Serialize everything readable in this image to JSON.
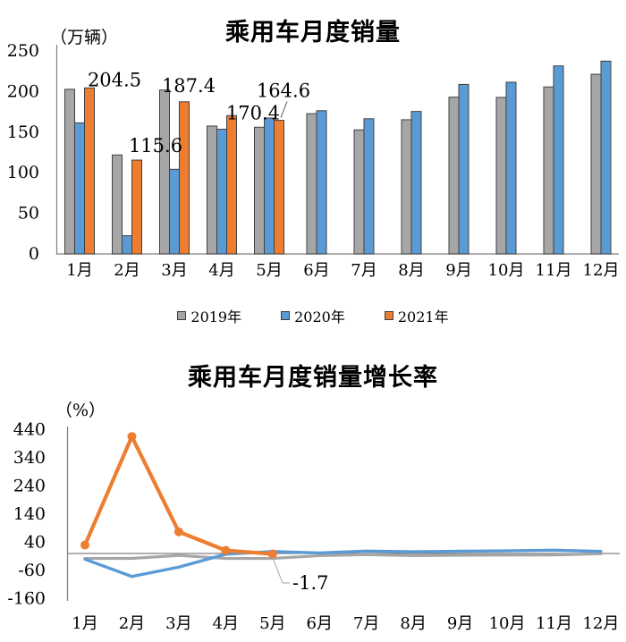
{
  "chart_data": [
    {
      "type": "bar",
      "title": "乘用车月度销量",
      "unit_label": "（万辆）",
      "categories": [
        "1月",
        "2月",
        "3月",
        "4月",
        "5月",
        "6月",
        "7月",
        "8月",
        "9月",
        "10月",
        "11月",
        "12月"
      ],
      "y_ticks": [
        0,
        50,
        100,
        150,
        200,
        250
      ],
      "ylim": [
        0,
        250
      ],
      "grid": false,
      "legend_position": "bottom",
      "series": [
        {
          "name": "2019年",
          "color": "#A6A6A6",
          "values": [
            202.8,
            121.9,
            201.9,
            157.5,
            156.1,
            172.8,
            152.8,
            165.3,
            193.1,
            192.8,
            205.7,
            221.3
          ]
        },
        {
          "name": "2020年",
          "color": "#5B9BD5",
          "values": [
            161.4,
            22.4,
            104.3,
            153.6,
            167.4,
            176.4,
            166.5,
            175.5,
            208.8,
            211.5,
            231.6,
            237.5
          ]
        },
        {
          "name": "2021年",
          "color": "#ED7D31",
          "values": [
            204.5,
            115.6,
            187.4,
            170.4,
            164.6
          ]
        }
      ],
      "data_labels": {
        "series": "2021年",
        "values": [
          "204.5",
          "115.6",
          "187.4",
          "170.4",
          "164.6"
        ]
      },
      "bar_border_color": "#404040",
      "axis_color": "#808080"
    },
    {
      "type": "line",
      "title": "乘用车月度销量增长率",
      "unit_label": "（%）",
      "categories": [
        "1月",
        "2月",
        "3月",
        "4月",
        "5月",
        "6月",
        "7月",
        "8月",
        "9月",
        "10月",
        "11月",
        "12月"
      ],
      "y_ticks": [
        440,
        340,
        240,
        140,
        40,
        -60,
        -160
      ],
      "ylim": [
        -160,
        440
      ],
      "grid": false,
      "legend_position": "none",
      "series": [
        {
          "name": "2019年",
          "color": "#A6A6A6",
          "markers": false,
          "values": [
            -17.7,
            -17.4,
            -6.9,
            -17.7,
            -17.4,
            -7.8,
            -3.9,
            -7.7,
            -6.3,
            -5.8,
            -5.4,
            -0.9
          ]
        },
        {
          "name": "2020年",
          "color": "#5B9BD5",
          "markers": false,
          "values": [
            -20.4,
            -81.7,
            -48.4,
            -2.6,
            7.0,
            1.8,
            8.5,
            6.0,
            8.0,
            9.3,
            11.6,
            7.2
          ]
        },
        {
          "name": "2021年",
          "color": "#ED7D31",
          "markers": true,
          "values": [
            30,
            415,
            77,
            10.8,
            -1.7
          ]
        }
      ],
      "annotation": {
        "text": "-1.7",
        "color": "#FF0000",
        "target_series": "2021年",
        "target_category": "5月"
      },
      "axis_color": "#808080"
    }
  ]
}
